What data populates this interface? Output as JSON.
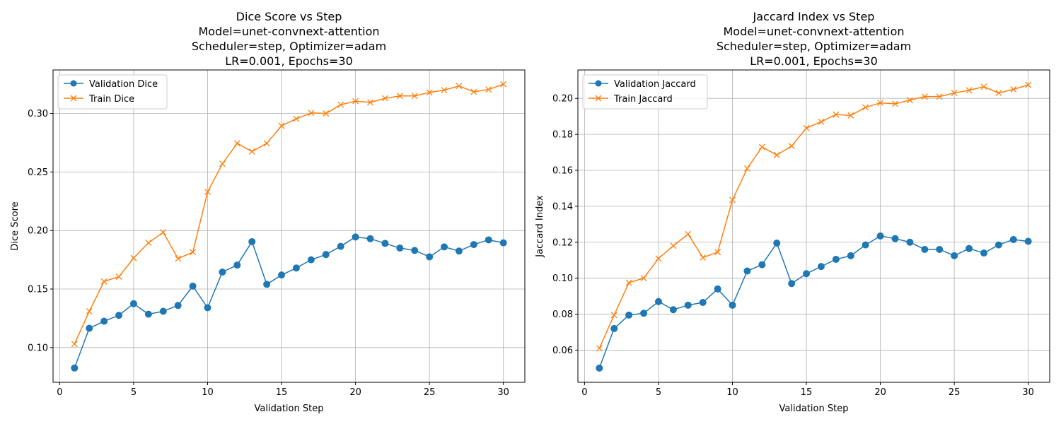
{
  "chart_data": [
    {
      "type": "line",
      "title": [
        "Dice Score vs Step",
        "Model=unet-convnext-attention",
        "Scheduler=step, Optimizer=adam",
        "LR=0.001, Epochs=30"
      ],
      "xlabel": "Validation Step",
      "ylabel": "Dice Score",
      "xlim": [
        -0.45,
        31.45
      ],
      "ylim": [
        0.0703,
        0.3372
      ],
      "xticks": [
        0,
        5,
        10,
        15,
        20,
        25,
        30
      ],
      "yticks": [
        0.1,
        0.15,
        0.2,
        0.25,
        0.3
      ],
      "ytick_labels": [
        "0.10",
        "0.15",
        "0.20",
        "0.25",
        "0.30"
      ],
      "grid": true,
      "legend_position": "top-left",
      "x": [
        1,
        2,
        3,
        4,
        5,
        6,
        7,
        8,
        9,
        10,
        11,
        12,
        13,
        14,
        15,
        16,
        17,
        18,
        19,
        20,
        21,
        22,
        23,
        24,
        25,
        26,
        27,
        28,
        29,
        30
      ],
      "series": [
        {
          "name": "Validation Dice",
          "color": "#1f77b4",
          "marker": "circle",
          "values": [
            0.0825,
            0.1165,
            0.1225,
            0.1275,
            0.1375,
            0.1285,
            0.131,
            0.136,
            0.1525,
            0.134,
            0.1645,
            0.1705,
            0.1905,
            0.154,
            0.162,
            0.168,
            0.175,
            0.1795,
            0.1865,
            0.1945,
            0.193,
            0.189,
            0.185,
            0.183,
            0.1775,
            0.186,
            0.1825,
            0.188,
            0.192,
            0.1895
          ]
        },
        {
          "name": "Train Dice",
          "color": "#ff7f0e",
          "marker": "x",
          "values": [
            0.103,
            0.131,
            0.1565,
            0.1605,
            0.1765,
            0.1895,
            0.1985,
            0.176,
            0.1815,
            0.233,
            0.257,
            0.2745,
            0.2675,
            0.2745,
            0.2895,
            0.2955,
            0.3005,
            0.3,
            0.3075,
            0.3105,
            0.3095,
            0.313,
            0.315,
            0.315,
            0.318,
            0.32,
            0.3235,
            0.3185,
            0.3205,
            0.325
          ]
        }
      ]
    },
    {
      "type": "line",
      "title": [
        "Jaccard Index vs Step",
        "Model=unet-convnext-attention",
        "Scheduler=step, Optimizer=adam",
        "LR=0.001, Epochs=30"
      ],
      "xlabel": "Validation Step",
      "ylabel": "Jaccard Index",
      "xlim": [
        -0.45,
        31.45
      ],
      "ylim": [
        0.0421,
        0.2158
      ],
      "xticks": [
        0,
        5,
        10,
        15,
        20,
        25,
        30
      ],
      "yticks": [
        0.06,
        0.08,
        0.1,
        0.12,
        0.14,
        0.16,
        0.18,
        0.2
      ],
      "ytick_labels": [
        "0.06",
        "0.08",
        "0.10",
        "0.12",
        "0.14",
        "0.16",
        "0.18",
        "0.20"
      ],
      "grid": true,
      "legend_position": "top-left",
      "x": [
        1,
        2,
        3,
        4,
        5,
        6,
        7,
        8,
        9,
        10,
        11,
        12,
        13,
        14,
        15,
        16,
        17,
        18,
        19,
        20,
        21,
        22,
        23,
        24,
        25,
        26,
        27,
        28,
        29,
        30
      ],
      "series": [
        {
          "name": "Validation Jaccard",
          "color": "#1f77b4",
          "marker": "circle",
          "values": [
            0.05,
            0.072,
            0.0795,
            0.0805,
            0.087,
            0.0825,
            0.085,
            0.0865,
            0.094,
            0.085,
            0.104,
            0.1075,
            0.1195,
            0.097,
            0.1025,
            0.1065,
            0.1105,
            0.1125,
            0.1185,
            0.1235,
            0.122,
            0.12,
            0.116,
            0.116,
            0.1125,
            0.1165,
            0.114,
            0.1185,
            0.1215,
            0.1205
          ]
        },
        {
          "name": "Train Jaccard",
          "color": "#ff7f0e",
          "marker": "x",
          "values": [
            0.061,
            0.0795,
            0.0975,
            0.1,
            0.111,
            0.118,
            0.1245,
            0.1115,
            0.1145,
            0.1435,
            0.161,
            0.173,
            0.1685,
            0.1735,
            0.1835,
            0.187,
            0.191,
            0.1905,
            0.195,
            0.1975,
            0.197,
            0.199,
            0.201,
            0.201,
            0.203,
            0.2045,
            0.2065,
            0.203,
            0.205,
            0.2075
          ]
        }
      ]
    }
  ]
}
